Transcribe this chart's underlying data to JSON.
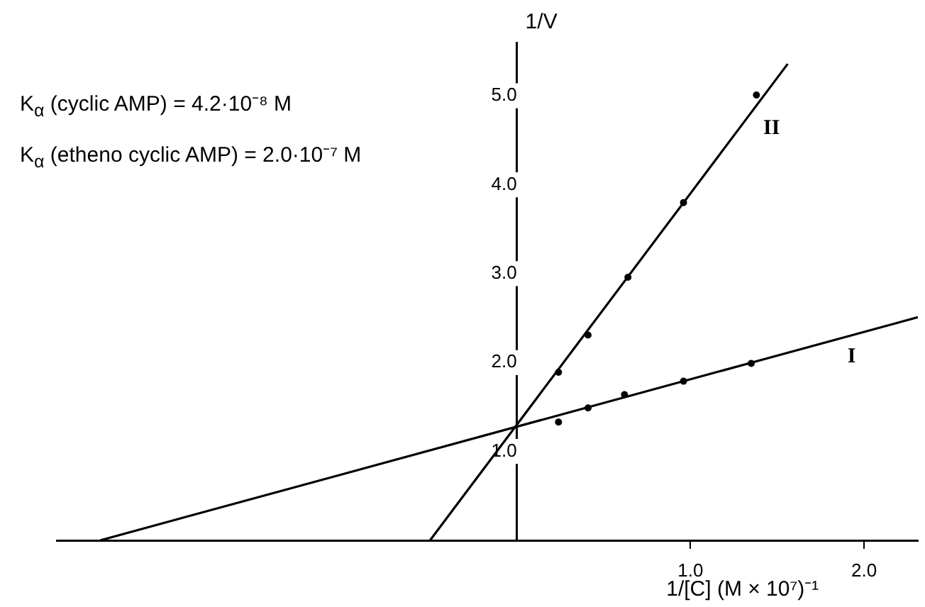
{
  "chart_data": {
    "type": "scatter",
    "xlabel": "1/[C] (M × 10⁷)⁻¹",
    "ylabel": "1/V",
    "annotations": [
      "K$_{α}$ (cyclic AMP) = 4.2·10⁻⁸ M",
      "K$_{α}$ (etheno cyclic AMP) = 2.0·10⁻⁷ M"
    ],
    "xlim": [
      -2.65,
      2.31
    ],
    "ylim": [
      0,
      5.6
    ],
    "xticks": [
      {
        "value": 1,
        "label": "1.0"
      },
      {
        "value": 2,
        "label": "2.0"
      }
    ],
    "yticks": [
      {
        "value": 1,
        "label": "1.0"
      },
      {
        "value": 2,
        "label": "2.0"
      },
      {
        "value": 3,
        "label": "3.0"
      },
      {
        "value": 4,
        "label": "4.0"
      },
      {
        "value": 5,
        "label": "5.0"
      }
    ],
    "grid": false,
    "legend": false,
    "series": [
      {
        "color": "#000000",
        "marker": "circle",
        "x": [
          0.24,
          0.41,
          0.62,
          0.96,
          1.35
        ],
        "values": [
          1.33,
          1.49,
          1.64,
          1.79,
          1.99
        ]
      },
      {
        "color": "#000000",
        "marker": "circle",
        "x": [
          0.24,
          0.41,
          0.64,
          0.96,
          1.38
        ],
        "values": [
          1.89,
          2.31,
          2.96,
          3.8,
          5.01
        ]
      },
      {
        "name": "I",
        "type": "line",
        "marker": "none",
        "color": "#000000",
        "x": [
          -2.4,
          2.31
        ],
        "values": [
          0,
          2.51
        ]
      },
      {
        "name": "II",
        "type": "line",
        "marker": "none",
        "color": "#000000",
        "x": [
          -0.5,
          1.56
        ],
        "values": [
          0,
          5.36
        ]
      }
    ]
  }
}
